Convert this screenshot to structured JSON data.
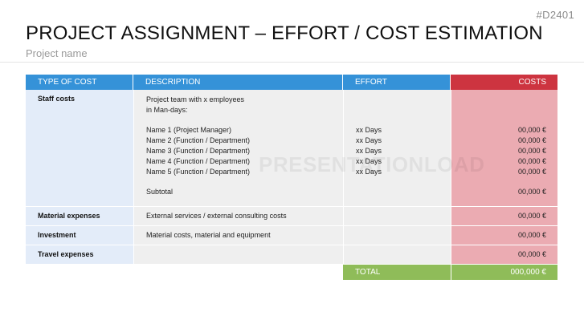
{
  "slide": {
    "code": "#D2401",
    "title": "PROJECT ASSIGNMENT – EFFORT / COST ESTIMATION",
    "subtitle": "Project name",
    "watermark": "PRESENTATIONLOAD"
  },
  "colors": {
    "header_blue": "#3592d8",
    "header_red": "#cd3440",
    "type_col": "#e3ecf9",
    "body_grey": "#efefef",
    "cost_pink": "#ebabb2",
    "total_green": "#8fbc59"
  },
  "table": {
    "headers": {
      "type": "TYPE OF COST",
      "description": "DESCRIPTION",
      "effort": "EFFORT",
      "costs": "COSTS"
    },
    "staff": {
      "type": "Staff costs",
      "intro": [
        "Project team with x employees",
        "in Man-days:"
      ],
      "members": [
        {
          "name": "Name 1 (Project Manager)",
          "effort": "xx Days",
          "cost": "00,000 €"
        },
        {
          "name": "Name 2 (Function / Department)",
          "effort": "xx Days",
          "cost": "00,000 €"
        },
        {
          "name": "Name 3 (Function / Department)",
          "effort": "xx Days",
          "cost": "00,000 €"
        },
        {
          "name": "Name 4 (Function / Department)",
          "effort": "xx Days",
          "cost": "00,000 €"
        },
        {
          "name": "Name 5 (Function / Department)",
          "effort": "xx Days",
          "cost": "00,000 €"
        }
      ],
      "subtotal_label": "Subtotal",
      "subtotal_cost": "00,000 €"
    },
    "rows": [
      {
        "type": "Material expenses",
        "description": "External services / external consulting costs",
        "effort": "",
        "cost": "00,000 €"
      },
      {
        "type": "Investment",
        "description": "Material costs, material and equipment",
        "effort": "",
        "cost": "00,000 €"
      },
      {
        "type": "Travel expenses",
        "description": "",
        "effort": "",
        "cost": "00,000 €"
      }
    ],
    "total": {
      "label": "TOTAL",
      "value": "000,000 €"
    }
  }
}
